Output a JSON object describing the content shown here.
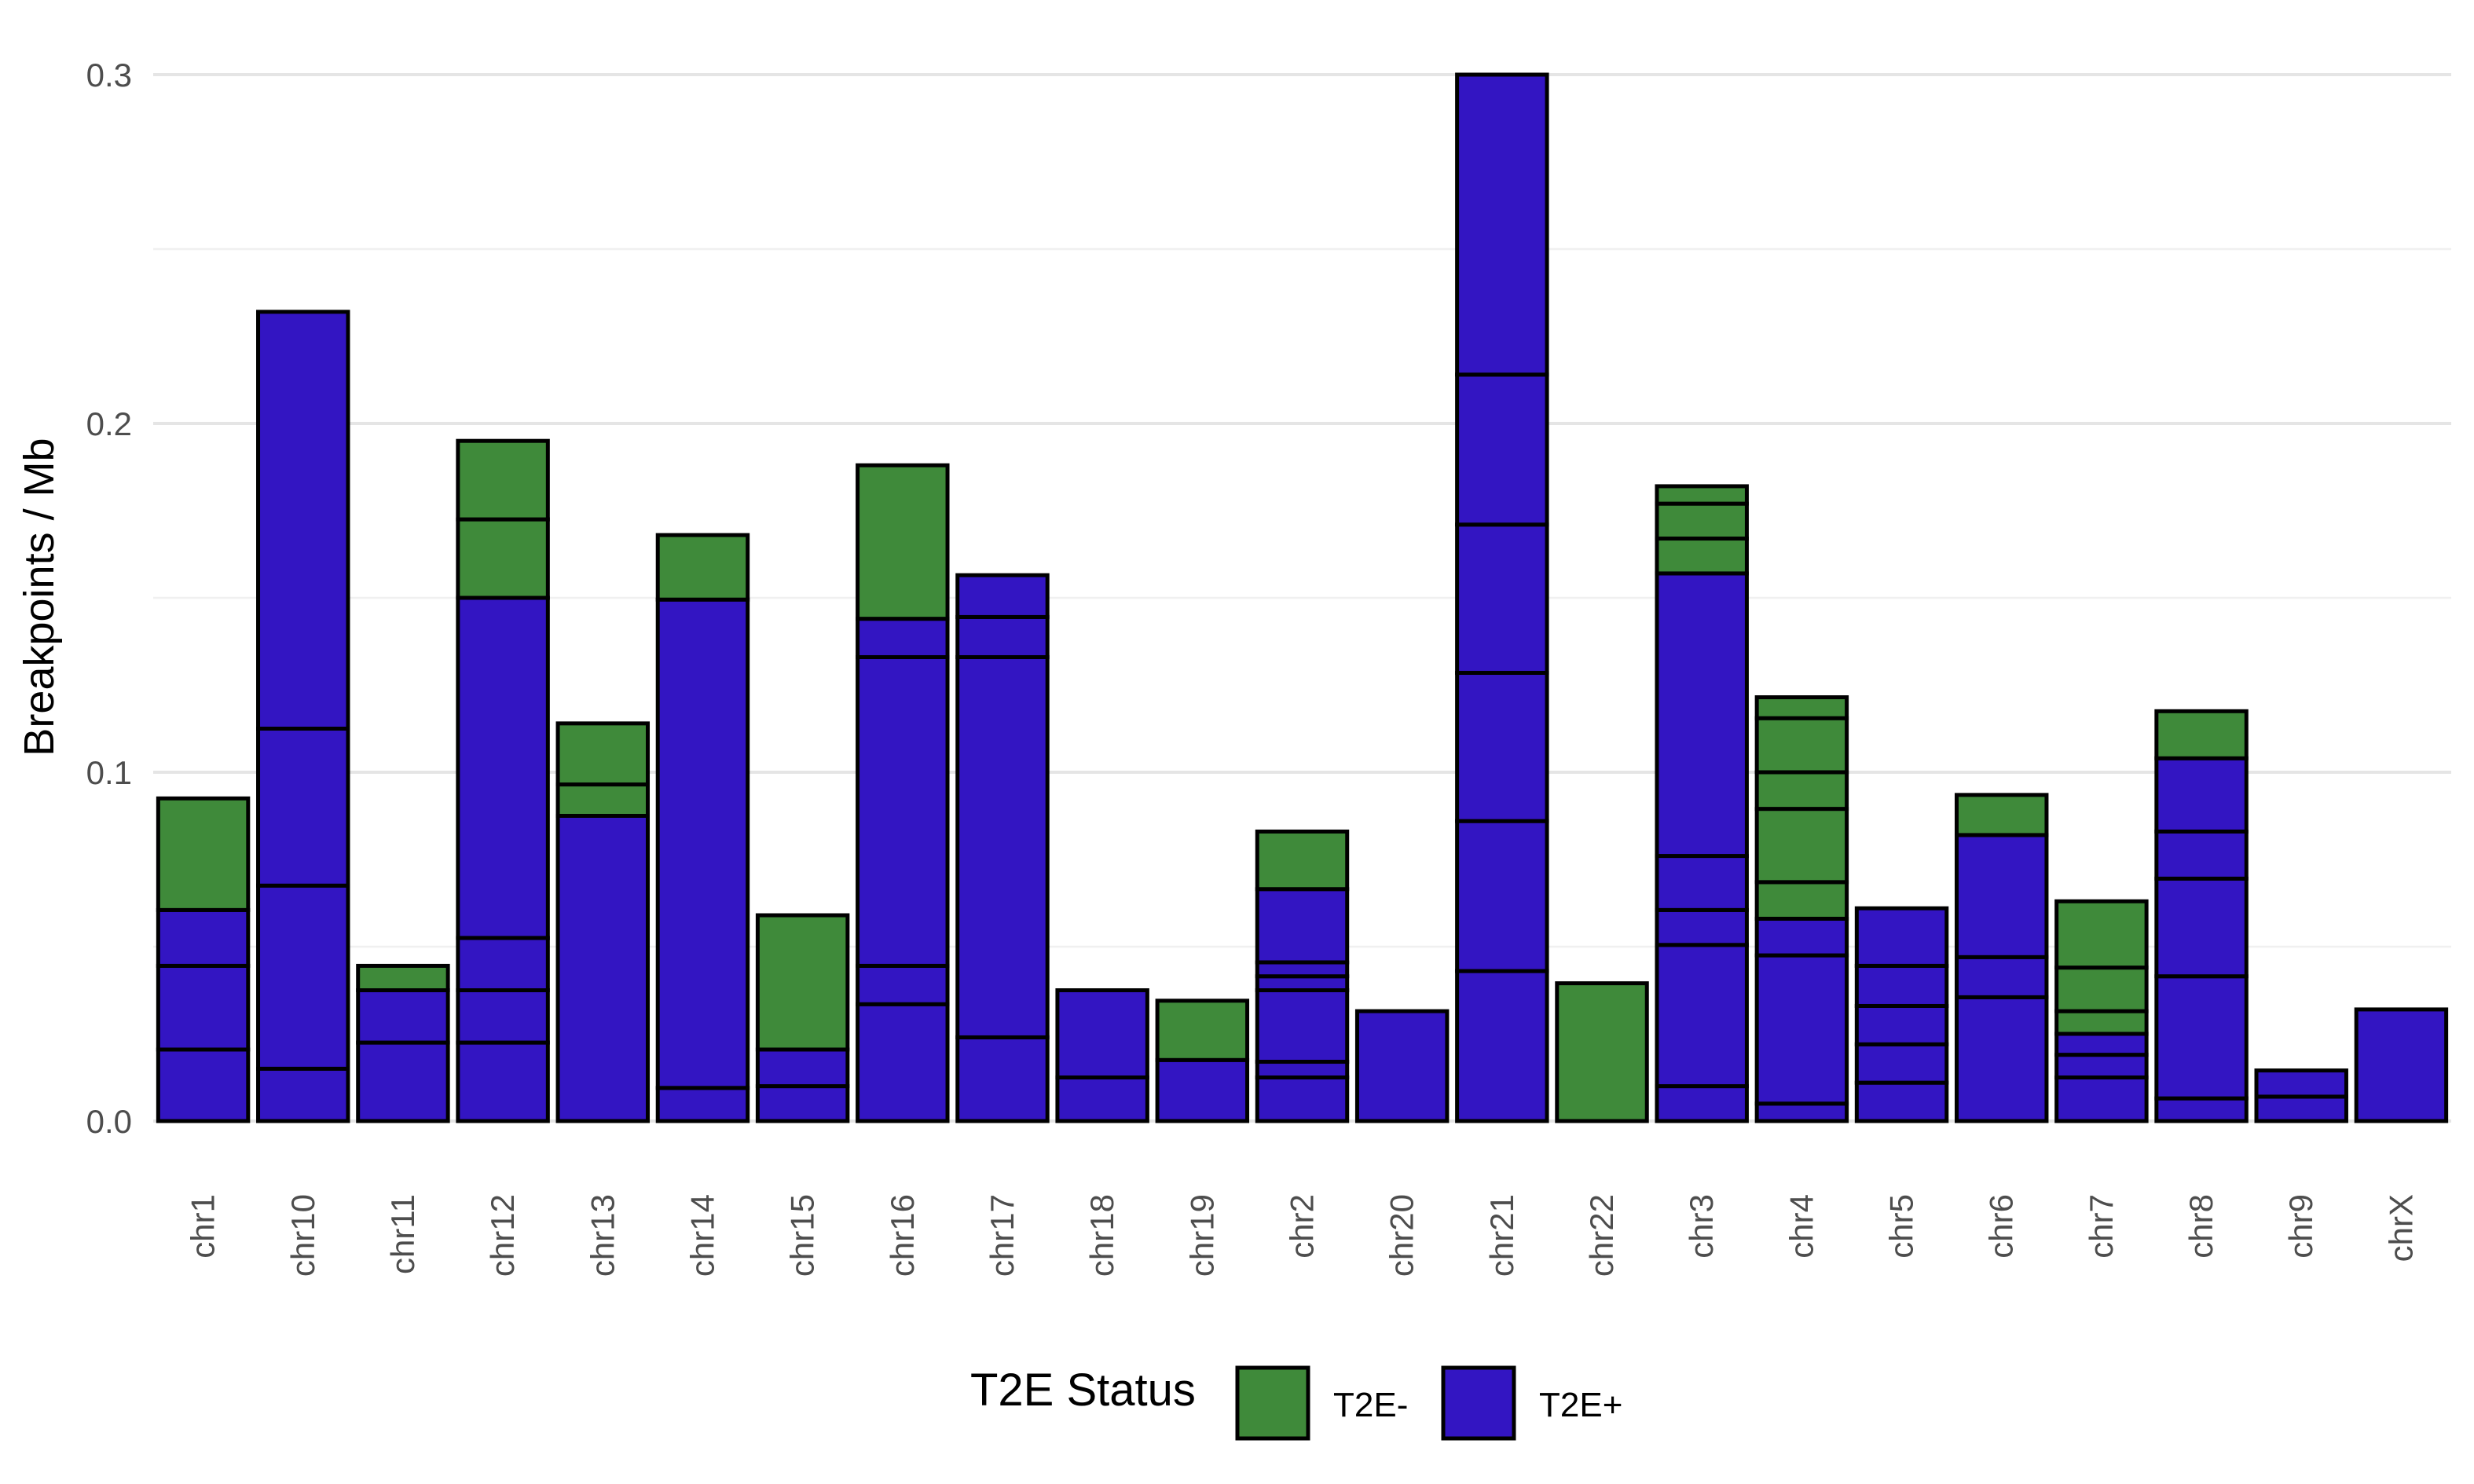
{
  "chart_data": {
    "type": "bar",
    "stacked": true,
    "ylabel": "Breakpoints / Mb",
    "xlabel": "",
    "ylim": [
      0,
      0.3
    ],
    "yticks": [
      "0.0",
      "0.1",
      "0.2",
      "0.3"
    ],
    "grid": true,
    "legend": {
      "title": "T2E Status",
      "placement": "bottom",
      "entries": [
        {
          "label": "T2E-",
          "color": "#3f8a3a"
        },
        {
          "label": "T2E+",
          "color": "#3315c2"
        }
      ]
    },
    "colors": {
      "T2E-": "#3f8a3a",
      "T2E+": "#3315c2"
    },
    "categories": [
      "chr1",
      "chr10",
      "chr11",
      "chr12",
      "chr13",
      "chr14",
      "chr15",
      "chr16",
      "chr17",
      "chr18",
      "chr19",
      "chr2",
      "chr20",
      "chr21",
      "chr22",
      "chr3",
      "chr4",
      "chr5",
      "chr6",
      "chr7",
      "chr8",
      "chr9",
      "chrX"
    ],
    "stacks": [
      [
        [
          "T2E+",
          0.0205
        ],
        [
          "T2E+",
          0.024
        ],
        [
          "T2E+",
          0.016
        ],
        [
          "T2E-",
          0.032
        ]
      ],
      [
        [
          "T2E+",
          0.015
        ],
        [
          "T2E+",
          0.0525
        ],
        [
          "T2E+",
          0.045
        ],
        [
          "T2E+",
          0.1195
        ]
      ],
      [
        [
          "T2E+",
          0.0225
        ],
        [
          "T2E+",
          0.015
        ],
        [
          "T2E-",
          0.007
        ]
      ],
      [
        [
          "T2E+",
          0.0225
        ],
        [
          "T2E+",
          0.015
        ],
        [
          "T2E+",
          0.015
        ],
        [
          "T2E+",
          0.0975
        ],
        [
          "T2E-",
          0.0225
        ],
        [
          "T2E-",
          0.0225
        ]
      ],
      [
        [
          "T2E+",
          0.0875
        ],
        [
          "T2E-",
          0.009
        ],
        [
          "T2E-",
          0.0175
        ]
      ],
      [
        [
          "T2E+",
          0.0095
        ],
        [
          "T2E+",
          0.14
        ],
        [
          "T2E-",
          0.0185
        ]
      ],
      [
        [
          "T2E+",
          0.01
        ],
        [
          "T2E+",
          0.0105
        ],
        [
          "T2E-",
          0.0385
        ]
      ],
      [
        [
          "T2E+",
          0.0335
        ],
        [
          "T2E+",
          0.011
        ],
        [
          "T2E+",
          0.0885
        ],
        [
          "T2E+",
          0.011
        ],
        [
          "T2E-",
          0.044
        ]
      ],
      [
        [
          "T2E+",
          0.024
        ],
        [
          "T2E+",
          0.109
        ],
        [
          "T2E+",
          0.0115
        ],
        [
          "T2E+",
          0.012
        ]
      ],
      [
        [
          "T2E+",
          0.0125
        ],
        [
          "T2E+",
          0.025
        ]
      ],
      [
        [
          "T2E+",
          0.0175
        ],
        [
          "T2E-",
          0.017
        ]
      ],
      [
        [
          "T2E+",
          0.0125
        ],
        [
          "T2E+",
          0.0045
        ],
        [
          "T2E+",
          0.0205
        ],
        [
          "T2E+",
          0.004
        ],
        [
          "T2E+",
          0.004
        ],
        [
          "T2E+",
          0.021
        ],
        [
          "T2E-",
          0.0165
        ]
      ],
      [
        [
          "T2E+",
          0.0315
        ]
      ],
      [
        [
          "T2E+",
          0.043
        ],
        [
          "T2E+",
          0.043
        ],
        [
          "T2E+",
          0.0425
        ],
        [
          "T2E+",
          0.0425
        ],
        [
          "T2E+",
          0.043
        ],
        [
          "T2E+",
          0.086
        ]
      ],
      [
        [
          "T2E-",
          0.0395
        ]
      ],
      [
        [
          "T2E+",
          0.01
        ],
        [
          "T2E+",
          0.0405
        ],
        [
          "T2E+",
          0.01
        ],
        [
          "T2E+",
          0.0155
        ],
        [
          "T2E+",
          0.081
        ],
        [
          "T2E-",
          0.01
        ],
        [
          "T2E-",
          0.01
        ],
        [
          "T2E-",
          0.005
        ]
      ],
      [
        [
          "T2E+",
          0.005
        ],
        [
          "T2E+",
          0.0425
        ],
        [
          "T2E+",
          0.0105
        ],
        [
          "T2E-",
          0.0105
        ],
        [
          "T2E-",
          0.021
        ],
        [
          "T2E-",
          0.0105
        ],
        [
          "T2E-",
          0.0155
        ],
        [
          "T2E-",
          0.006
        ]
      ],
      [
        [
          "T2E+",
          0.011
        ],
        [
          "T2E+",
          0.011
        ],
        [
          "T2E+",
          0.011
        ],
        [
          "T2E+",
          0.0115
        ],
        [
          "T2E+",
          0.0165
        ]
      ],
      [
        [
          "T2E+",
          0.0355
        ],
        [
          "T2E+",
          0.0115
        ],
        [
          "T2E+",
          0.035
        ],
        [
          "T2E-",
          0.0115
        ]
      ],
      [
        [
          "T2E+",
          0.0125
        ],
        [
          "T2E+",
          0.0065
        ],
        [
          "T2E+",
          0.006
        ],
        [
          "T2E-",
          0.0065
        ],
        [
          "T2E-",
          0.0125
        ],
        [
          "T2E-",
          0.019
        ]
      ],
      [
        [
          "T2E+",
          0.0065
        ],
        [
          "T2E+",
          0.035
        ],
        [
          "T2E+",
          0.028
        ],
        [
          "T2E+",
          0.0135
        ],
        [
          "T2E+",
          0.021
        ],
        [
          "T2E-",
          0.0135
        ]
      ],
      [
        [
          "T2E+",
          0.007
        ],
        [
          "T2E+",
          0.0075
        ]
      ],
      [
        [
          "T2E+",
          0.032
        ]
      ]
    ]
  }
}
